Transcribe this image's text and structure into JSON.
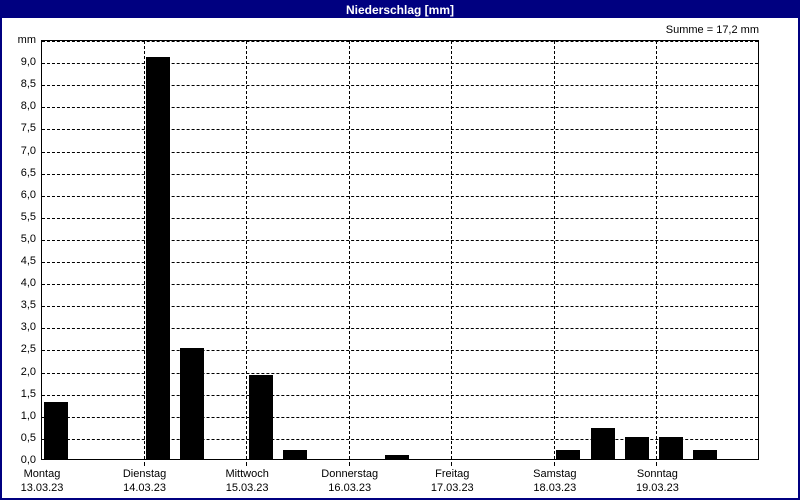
{
  "window": {
    "title": "Niederschlag [mm]",
    "colors": {
      "title_bar": "#000080",
      "title_text": "#ffffff",
      "border": "#000080",
      "background": "#ffffff",
      "bar": "#000000",
      "grid": "#000000"
    }
  },
  "chart_data": {
    "type": "bar",
    "title": "Niederschlag [mm]",
    "unit_label": "mm",
    "sum_label": "Summe = 17,2 mm",
    "sum_value_mm": 17.2,
    "ylabel": "mm",
    "ylim": [
      0,
      9.5
    ],
    "ytick_step": 0.5,
    "ytick_labels": [
      "0,0",
      "0,5",
      "1,0",
      "1,5",
      "2,0",
      "2,5",
      "3,0",
      "3,5",
      "4,0",
      "4,5",
      "5,0",
      "5,5",
      "6,0",
      "6,5",
      "7,0",
      "7,5",
      "8,0",
      "8,5",
      "9,0"
    ],
    "grid": "dashed",
    "legend": "none",
    "days": [
      {
        "name": "Montag",
        "date": "13.03.23"
      },
      {
        "name": "Dienstag",
        "date": "14.03.23"
      },
      {
        "name": "Mittwoch",
        "date": "15.03.23"
      },
      {
        "name": "Donnerstag",
        "date": "16.03.23"
      },
      {
        "name": "Freitag",
        "date": "17.03.23"
      },
      {
        "name": "Samstag",
        "date": "18.03.23"
      },
      {
        "name": "Sonntag",
        "date": "19.03.23"
      }
    ],
    "slots_per_day": 3,
    "bars": [
      {
        "day": 0,
        "slot": 0,
        "value_mm": 1.3
      },
      {
        "day": 1,
        "slot": 0,
        "value_mm": 9.1
      },
      {
        "day": 1,
        "slot": 1,
        "value_mm": 2.5
      },
      {
        "day": 2,
        "slot": 0,
        "value_mm": 1.9
      },
      {
        "day": 2,
        "slot": 1,
        "value_mm": 0.2
      },
      {
        "day": 3,
        "slot": 1,
        "value_mm": 0.1
      },
      {
        "day": 5,
        "slot": 0,
        "value_mm": 0.2
      },
      {
        "day": 5,
        "slot": 1,
        "value_mm": 0.7
      },
      {
        "day": 5,
        "slot": 2,
        "value_mm": 0.5
      },
      {
        "day": 6,
        "slot": 0,
        "value_mm": 0.5
      },
      {
        "day": 6,
        "slot": 1,
        "value_mm": 0.2
      }
    ]
  }
}
